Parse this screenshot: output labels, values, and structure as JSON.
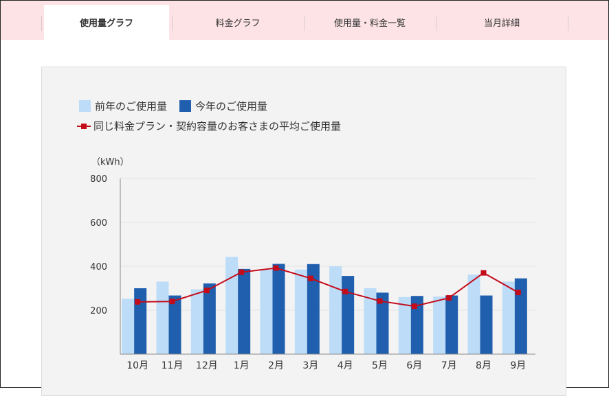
{
  "tabs": [
    {
      "label": "使用量グラフ",
      "active": true
    },
    {
      "label": "料金グラフ",
      "active": false
    },
    {
      "label": "使用量・料金一覧",
      "active": false
    },
    {
      "label": "当月詳細",
      "active": false
    }
  ],
  "colors": {
    "prev_year": "#bcdcf8",
    "this_year": "#1f5fae",
    "average_line": "#c40b1a",
    "tab_bg": "#fde3e6",
    "panel_bg": "#f3f3f3"
  },
  "chart_data": {
    "type": "bar",
    "unit_label": "（kWh）",
    "ylim": [
      0,
      800
    ],
    "yticks": [
      200,
      400,
      600,
      800
    ],
    "categories": [
      "10月",
      "11月",
      "12月",
      "1月",
      "2月",
      "3月",
      "4月",
      "5月",
      "6月",
      "7月",
      "8月",
      "9月"
    ],
    "series": [
      {
        "name": "前年のご使用量",
        "kind": "bar",
        "values": [
          252,
          330,
          295,
          443,
          385,
          385,
          400,
          300,
          260,
          262,
          362,
          330
        ]
      },
      {
        "name": "今年のご使用量",
        "kind": "bar",
        "values": [
          300,
          267,
          322,
          388,
          411,
          410,
          356,
          280,
          265,
          267,
          267,
          345
        ]
      },
      {
        "name": "同じ料金プラン・契約容量のお客さまの平均ご使用量",
        "kind": "line",
        "values": [
          238,
          240,
          290,
          373,
          392,
          345,
          285,
          242,
          218,
          256,
          370,
          281
        ]
      }
    ],
    "legend_position": "top-left",
    "grid": true
  }
}
